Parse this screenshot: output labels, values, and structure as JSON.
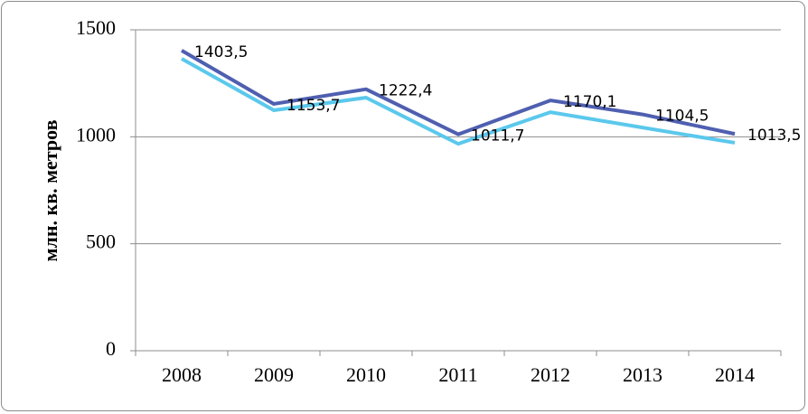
{
  "chart_data": {
    "type": "line",
    "y_label": "млн. кв. метров",
    "categories": [
      "2008",
      "2009",
      "2010",
      "2011",
      "2012",
      "2013",
      "2014"
    ],
    "series": [
      {
        "color": "#4f5fb0",
        "values": [
          1403.5,
          1153.7,
          1222.4,
          1011.7,
          1170.1,
          1104.5,
          1013.5
        ],
        "value_labels": [
          "1403,5",
          "1153,7",
          "1222,4",
          "1011,7",
          "1170,1",
          "1104,5",
          "1013,5"
        ]
      },
      {
        "color": "#5bc8ec",
        "values": [
          1365,
          1124,
          1183,
          967,
          1115,
          1043,
          972
        ]
      }
    ],
    "ylim": [
      0,
      1500
    ],
    "yticks": [
      0,
      500,
      1000,
      1500
    ],
    "grid": true
  }
}
